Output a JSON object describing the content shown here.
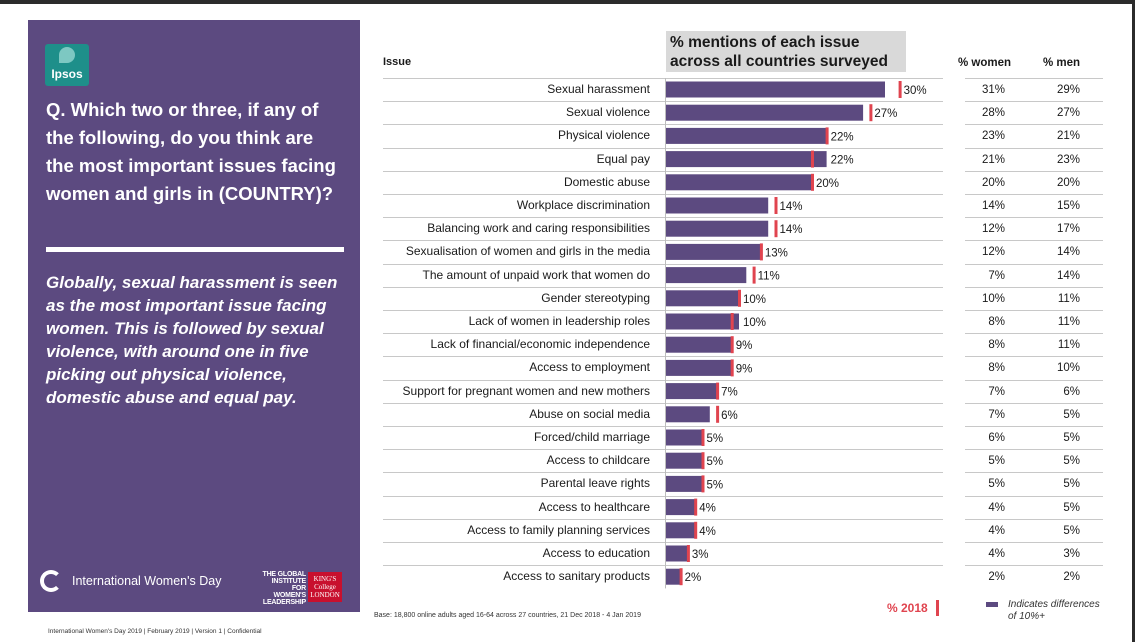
{
  "left_panel": {
    "logo_text": "Ipsos",
    "question": "Q. Which two or three, if any of the following, do you think are the most important issues facing women and girls in (COUNTRY)?",
    "summary": "Globally, sexual harassment is seen as the most important issue facing women. This is followed by sexual violence, with around one in five picking out physical violence, domestic abuse and equal pay.",
    "iwd_label": "International Women's Day",
    "giwl_label": "THE GLOBAL INSTITUTE FOR WOMEN'S LEADERSHIP",
    "kings_label": "KING'S College LONDON"
  },
  "footer": "International Women's Day 2019 | February 2019 | Version 1 | Confidential",
  "base_note": "Base: 18,800 online adults aged 16-64 across 27 countries,  21 Dec 2018 - 4 Jan 2019",
  "legend": {
    "label_2018": "% 2018",
    "differences": "Indicates differences of 10%+"
  },
  "colors": {
    "bar": "#5c4a80",
    "marker_2018": "#e0444f",
    "panel": "#5c4a80"
  },
  "chart_data": {
    "type": "bar",
    "orientation": "horizontal",
    "title": "% mentions of each issue across all countries surveyed",
    "columns": {
      "issue": "Issue",
      "women": "% women",
      "men": "% men"
    },
    "xlim": [
      0,
      30
    ],
    "categories": [
      "Sexual harassment",
      "Sexual violence",
      "Physical violence",
      "Equal pay",
      "Domestic abuse",
      "Workplace discrimination",
      "Balancing work and caring responsibilities",
      "Sexualisation of women and girls in the media",
      "The amount of unpaid work that women do",
      "Gender stereotyping",
      "Lack of women in leadership roles",
      "Lack of financial/economic independence",
      "Access to employment",
      "Support for pregnant women and new mothers",
      "Abuse on social media",
      "Forced/child marriage",
      "Access to childcare",
      "Parental leave rights",
      "Access to healthcare",
      "Access to family planning services",
      "Access to education",
      "Access to sanitary products"
    ],
    "values": [
      30,
      27,
      22,
      22,
      20,
      14,
      14,
      13,
      11,
      10,
      10,
      9,
      9,
      7,
      6,
      5,
      5,
      5,
      4,
      4,
      3,
      2
    ],
    "value_labels": [
      "30%",
      "27%",
      "22%",
      "22%",
      "20%",
      "14%",
      "14%",
      "13%",
      "11%",
      "10%",
      "10%",
      "9%",
      "9%",
      "7%",
      "6%",
      "5%",
      "5%",
      "5%",
      "4%",
      "4%",
      "3%",
      "2%"
    ],
    "values_2018": [
      32,
      28,
      22,
      20,
      20,
      15,
      15,
      13,
      12,
      10,
      9,
      9,
      9,
      7,
      7,
      5,
      5,
      5,
      4,
      4,
      3,
      2
    ],
    "women": [
      "31%",
      "28%",
      "23%",
      "21%",
      "20%",
      "14%",
      "12%",
      "12%",
      "7%",
      "10%",
      "8%",
      "8%",
      "8%",
      "7%",
      "7%",
      "6%",
      "5%",
      "5%",
      "4%",
      "4%",
      "4%",
      "2%"
    ],
    "men": [
      "29%",
      "27%",
      "21%",
      "23%",
      "20%",
      "15%",
      "17%",
      "14%",
      "14%",
      "11%",
      "11%",
      "11%",
      "10%",
      "6%",
      "5%",
      "5%",
      "5%",
      "5%",
      "5%",
      "5%",
      "3%",
      "2%"
    ]
  }
}
